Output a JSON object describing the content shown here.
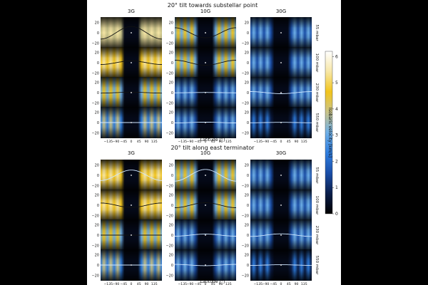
{
  "chart_data": {
    "type": "heatmap",
    "quantity": "isobaric velocity",
    "colorbar": {
      "label": "Isobaric velocity [km/s]",
      "range": [
        0,
        6.2
      ],
      "ticks": [
        "0",
        "1",
        "2",
        "3",
        "4",
        "5",
        "6"
      ],
      "colors": [
        "#000000",
        "#0b1e4a",
        "#1a4ea8",
        "#2f7ee0",
        "#6fb0e8",
        "#c9c48a",
        "#f2c41c",
        "#f7e7a6",
        "#ffffff"
      ]
    },
    "xaxis": {
      "label": "Latitude [°]",
      "ticks": [
        "−135",
        "−90",
        "−45",
        "0",
        "45",
        "90",
        "135"
      ],
      "range": [
        -180,
        180
      ]
    },
    "yaxis": {
      "label": "Latitude [°]",
      "ticks": [
        "20",
        "0",
        "−20"
      ],
      "range": [
        -30,
        30
      ]
    },
    "columns": [
      "3G",
      "10G",
      "30G"
    ],
    "pressures": [
      "55 mbar",
      "100 mbar",
      "230 mbar",
      "550 mbar"
    ],
    "panels_groups": [
      {
        "title": "20° tilt towards substellar point",
        "cells": [
          [
            {
              "amp": 1.0,
              "tilt": 12,
              "bright": 0.7,
              "line": "dark"
            },
            {
              "amp": 0.8,
              "tilt": -12,
              "bright": 0.5,
              "line": "dark"
            },
            {
              "amp": 0.3,
              "tilt": 0,
              "bright": 0.25,
              "line": "none"
            }
          ],
          [
            {
              "amp": 0.85,
              "tilt": 4,
              "bright": 0.75,
              "line": "dark"
            },
            {
              "amp": 0.6,
              "tilt": -8,
              "bright": 0.55,
              "line": "dark"
            },
            {
              "amp": 0.3,
              "tilt": 0,
              "bright": 0.25,
              "line": "none"
            }
          ],
          [
            {
              "amp": 0.45,
              "tilt": 2,
              "bright": 0.55,
              "line": "dark"
            },
            {
              "amp": 0.35,
              "tilt": 1,
              "bright": 0.3,
              "line": "light"
            },
            {
              "amp": 0.2,
              "tilt": -10,
              "bright": 0.25,
              "line": "light"
            }
          ],
          [
            {
              "amp": 0.35,
              "tilt": 0,
              "bright": 0.4,
              "line": "light"
            },
            {
              "amp": 0.25,
              "tilt": 3,
              "bright": 0.25,
              "line": "light"
            },
            {
              "amp": 0.15,
              "tilt": 3,
              "bright": 0.2,
              "line": "light"
            }
          ]
        ]
      },
      {
        "title": "20° tilt along east terminator",
        "cells": [
          [
            {
              "amp": 1.0,
              "tilt": 10,
              "bright": 0.75,
              "line": "light"
            },
            {
              "amp": 0.8,
              "tilt": 14,
              "bright": 0.55,
              "line": "light"
            },
            {
              "amp": 0.3,
              "tilt": 0,
              "bright": 0.25,
              "line": "none"
            }
          ],
          [
            {
              "amp": 0.85,
              "tilt": -5,
              "bright": 0.75,
              "line": "dark"
            },
            {
              "amp": 0.6,
              "tilt": 8,
              "bright": 0.6,
              "line": "dark"
            },
            {
              "amp": 0.3,
              "tilt": 0,
              "bright": 0.25,
              "line": "none"
            }
          ],
          [
            {
              "amp": 0.5,
              "tilt": 0,
              "bright": 0.55,
              "line": "dark"
            },
            {
              "amp": 0.4,
              "tilt": 5,
              "bright": 0.35,
              "line": "light"
            },
            {
              "amp": 0.25,
              "tilt": 10,
              "bright": 0.25,
              "line": "light"
            }
          ],
          [
            {
              "amp": 0.4,
              "tilt": 0,
              "bright": 0.45,
              "line": "light"
            },
            {
              "amp": 0.3,
              "tilt": -4,
              "bright": 0.25,
              "line": "light"
            },
            {
              "amp": 0.2,
              "tilt": 3,
              "bright": 0.2,
              "line": "light"
            }
          ]
        ]
      }
    ]
  }
}
